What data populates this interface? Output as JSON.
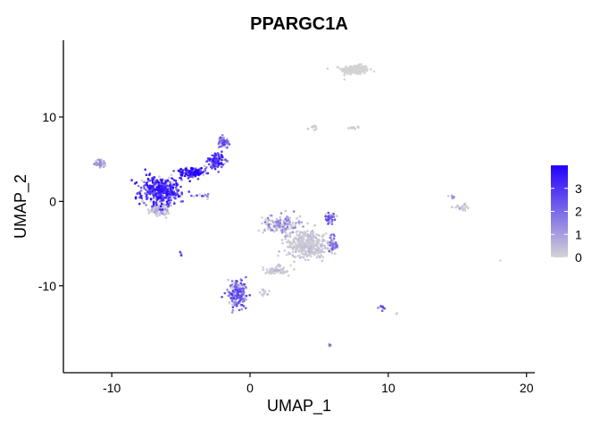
{
  "chart_data": {
    "type": "scatter",
    "title": "PPARGC1A",
    "xlabel": "UMAP_1",
    "ylabel": "UMAP_2",
    "xlim": [
      -13.5,
      20.6
    ],
    "ylim": [
      -20.3,
      19.1
    ],
    "x_ticks": [
      -10,
      0,
      10,
      20
    ],
    "y_ticks": [
      -10,
      0,
      10
    ],
    "grid": false,
    "legend": {
      "placement": "right",
      "ticks": [
        3,
        2,
        1,
        0
      ],
      "range": [
        0,
        4
      ],
      "color_low": "#d3d3d3",
      "color_high": "#2200ff"
    },
    "clusters": [
      {
        "x": 7.6,
        "y": 15.6,
        "sx": 0.9,
        "sy": 0.5,
        "n": 240,
        "expr": 0.0
      },
      {
        "x": 4.6,
        "y": 8.7,
        "sx": 0.3,
        "sy": 0.2,
        "n": 10,
        "expr": 0.1
      },
      {
        "x": 7.5,
        "y": 8.7,
        "sx": 0.4,
        "sy": 0.12,
        "n": 14,
        "expr": 0.1
      },
      {
        "x": -10.8,
        "y": 4.5,
        "sx": 0.4,
        "sy": 0.4,
        "n": 55,
        "expr": 1.0
      },
      {
        "x": -6.5,
        "y": 1.3,
        "sx": 1.3,
        "sy": 1.5,
        "n": 430,
        "expr": 2.6
      },
      {
        "x": -6.5,
        "y": -1.0,
        "sx": 0.7,
        "sy": 0.7,
        "n": 110,
        "expr": 0.8
      },
      {
        "x": -4.1,
        "y": 3.4,
        "sx": 0.8,
        "sy": 0.5,
        "n": 170,
        "expr": 2.8
      },
      {
        "x": -2.5,
        "y": 4.8,
        "sx": 0.55,
        "sy": 0.8,
        "n": 130,
        "expr": 2.5
      },
      {
        "x": -1.9,
        "y": 7.0,
        "sx": 0.35,
        "sy": 0.6,
        "n": 55,
        "expr": 2.0
      },
      {
        "x": -3.3,
        "y": 0.6,
        "sx": 0.8,
        "sy": 0.2,
        "n": 14,
        "expr": 2.0
      },
      {
        "x": -5.0,
        "y": -6.2,
        "sx": 0.1,
        "sy": 0.15,
        "n": 5,
        "expr": 2.0
      },
      {
        "x": 4.1,
        "y": -5.0,
        "sx": 1.4,
        "sy": 1.5,
        "n": 360,
        "expr": 0.4
      },
      {
        "x": 2.3,
        "y": -2.8,
        "sx": 1.2,
        "sy": 1.0,
        "n": 160,
        "expr": 1.2
      },
      {
        "x": 5.8,
        "y": -2.0,
        "sx": 0.4,
        "sy": 0.6,
        "n": 55,
        "expr": 1.8
      },
      {
        "x": 6.0,
        "y": -5.2,
        "sx": 0.35,
        "sy": 0.9,
        "n": 70,
        "expr": 1.6
      },
      {
        "x": 2.0,
        "y": -8.2,
        "sx": 0.9,
        "sy": 0.5,
        "n": 60,
        "expr": 0.5
      },
      {
        "x": -0.9,
        "y": -11.0,
        "sx": 0.6,
        "sy": 1.3,
        "n": 200,
        "expr": 2.0
      },
      {
        "x": 1.0,
        "y": -10.7,
        "sx": 0.3,
        "sy": 0.3,
        "n": 14,
        "expr": 0.6
      },
      {
        "x": 14.6,
        "y": 0.6,
        "sx": 0.3,
        "sy": 0.15,
        "n": 8,
        "expr": 1.0
      },
      {
        "x": 15.3,
        "y": -0.7,
        "sx": 0.5,
        "sy": 0.3,
        "n": 26,
        "expr": 0.6
      },
      {
        "x": 9.5,
        "y": -12.6,
        "sx": 0.3,
        "sy": 0.25,
        "n": 9,
        "expr": 2.2
      },
      {
        "x": 10.6,
        "y": -13.3,
        "sx": 0.1,
        "sy": 0.1,
        "n": 2,
        "expr": 0.5
      },
      {
        "x": 5.8,
        "y": -17.0,
        "sx": 0.15,
        "sy": 0.2,
        "n": 6,
        "expr": 1.6
      },
      {
        "x": 18.1,
        "y": -7.0,
        "sx": 0.05,
        "sy": 0.05,
        "n": 1,
        "expr": 0.0
      }
    ]
  }
}
